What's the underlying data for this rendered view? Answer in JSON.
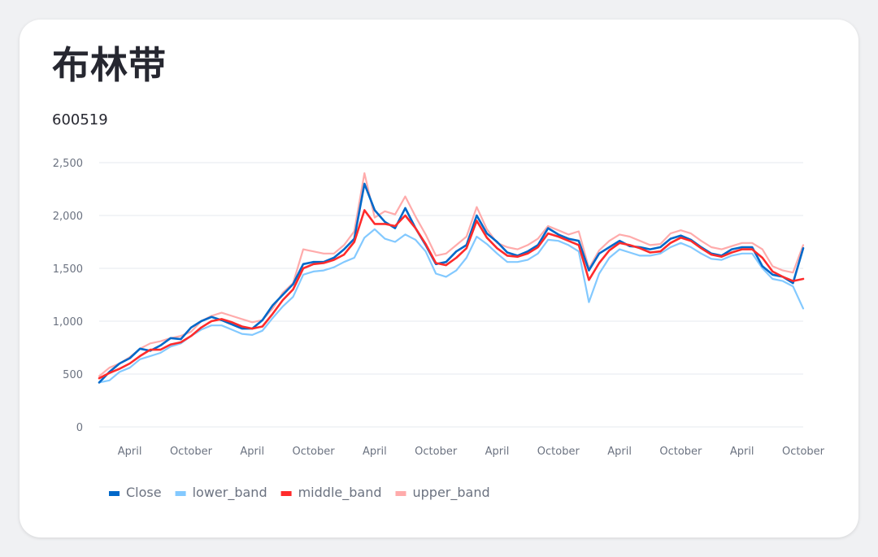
{
  "page": {
    "title": "布林带",
    "subtitle": "600519"
  },
  "chart_data": {
    "type": "line",
    "title": "布林带",
    "subtitle": "600519",
    "xlabel": "",
    "ylabel": "",
    "ylim": [
      0,
      2500
    ],
    "yticks": [
      0,
      500,
      1000,
      1500,
      2000,
      2500
    ],
    "ytick_labels": [
      "0",
      "500",
      "1,000",
      "1,500",
      "2,000",
      "2,500"
    ],
    "x_range": [
      0,
      69
    ],
    "xticks": [
      {
        "x": 3,
        "label": "April"
      },
      {
        "x": 9,
        "label": "October"
      },
      {
        "x": 15,
        "label": "April"
      },
      {
        "x": 21,
        "label": "October"
      },
      {
        "x": 27,
        "label": "April"
      },
      {
        "x": 33,
        "label": "October"
      },
      {
        "x": 39,
        "label": "April"
      },
      {
        "x": 45,
        "label": "October"
      },
      {
        "x": 51,
        "label": "April"
      },
      {
        "x": 57,
        "label": "October"
      },
      {
        "x": 63,
        "label": "April"
      },
      {
        "x": 69,
        "label": "October"
      }
    ],
    "grid": true,
    "legend_position": "bottom-left",
    "x": [
      0,
      1,
      2,
      3,
      4,
      5,
      6,
      7,
      8,
      9,
      10,
      11,
      12,
      13,
      14,
      15,
      16,
      17,
      18,
      19,
      20,
      21,
      22,
      23,
      24,
      25,
      26,
      27,
      28,
      29,
      30,
      31,
      32,
      33,
      34,
      35,
      36,
      37,
      38,
      39,
      40,
      41,
      42,
      43,
      44,
      45,
      46,
      47,
      48,
      49,
      50,
      51,
      52,
      53,
      54,
      55,
      56,
      57,
      58,
      59,
      60,
      61,
      62,
      63,
      64,
      65,
      66,
      67,
      68,
      69
    ],
    "series": [
      {
        "name": "Close",
        "color": "#0068c9",
        "values": [
          420,
          520,
          600,
          650,
          740,
          720,
          770,
          840,
          830,
          940,
          1000,
          1040,
          1010,
          970,
          930,
          930,
          1010,
          1150,
          1250,
          1350,
          1540,
          1560,
          1560,
          1600,
          1680,
          1780,
          2300,
          2050,
          1940,
          1880,
          2070,
          1880,
          1720,
          1540,
          1560,
          1660,
          1720,
          2000,
          1830,
          1750,
          1650,
          1620,
          1660,
          1720,
          1880,
          1820,
          1780,
          1760,
          1480,
          1640,
          1700,
          1760,
          1710,
          1700,
          1680,
          1700,
          1780,
          1810,
          1770,
          1700,
          1640,
          1620,
          1680,
          1700,
          1700,
          1520,
          1440,
          1420,
          1360,
          1690
        ]
      },
      {
        "name": "lower_band",
        "color": "#83c9ff",
        "values": [
          420,
          440,
          520,
          560,
          640,
          670,
          700,
          760,
          790,
          860,
          920,
          960,
          960,
          920,
          880,
          870,
          910,
          1030,
          1140,
          1230,
          1440,
          1470,
          1480,
          1510,
          1560,
          1600,
          1790,
          1870,
          1780,
          1750,
          1820,
          1770,
          1660,
          1450,
          1420,
          1480,
          1600,
          1800,
          1730,
          1640,
          1560,
          1560,
          1580,
          1640,
          1770,
          1760,
          1720,
          1660,
          1180,
          1450,
          1600,
          1680,
          1650,
          1620,
          1620,
          1640,
          1700,
          1740,
          1700,
          1640,
          1590,
          1580,
          1620,
          1640,
          1640,
          1500,
          1400,
          1380,
          1330,
          1120
        ]
      },
      {
        "name": "middle_band",
        "color": "#ff2b2b",
        "values": [
          460,
          510,
          550,
          600,
          670,
          730,
          730,
          780,
          800,
          860,
          940,
          1000,
          1020,
          990,
          950,
          930,
          950,
          1070,
          1200,
          1300,
          1500,
          1540,
          1550,
          1580,
          1630,
          1750,
          2050,
          1920,
          1920,
          1900,
          2000,
          1880,
          1730,
          1550,
          1530,
          1600,
          1690,
          1950,
          1790,
          1690,
          1620,
          1610,
          1640,
          1700,
          1830,
          1800,
          1760,
          1720,
          1390,
          1550,
          1670,
          1740,
          1720,
          1690,
          1650,
          1660,
          1740,
          1790,
          1760,
          1690,
          1630,
          1610,
          1650,
          1680,
          1680,
          1600,
          1470,
          1420,
          1380,
          1400
        ]
      },
      {
        "name": "upper_band",
        "color": "#ffabab",
        "values": [
          480,
          560,
          600,
          660,
          740,
          790,
          810,
          840,
          860,
          900,
          1000,
          1050,
          1080,
          1050,
          1020,
          990,
          1010,
          1120,
          1270,
          1360,
          1680,
          1660,
          1640,
          1640,
          1720,
          1850,
          2400,
          1980,
          2040,
          2010,
          2180,
          1990,
          1820,
          1620,
          1640,
          1720,
          1800,
          2080,
          1870,
          1740,
          1700,
          1680,
          1720,
          1780,
          1900,
          1860,
          1820,
          1850,
          1500,
          1670,
          1760,
          1820,
          1800,
          1760,
          1720,
          1730,
          1830,
          1860,
          1830,
          1760,
          1700,
          1680,
          1710,
          1740,
          1740,
          1680,
          1520,
          1480,
          1460,
          1720
        ]
      }
    ]
  }
}
